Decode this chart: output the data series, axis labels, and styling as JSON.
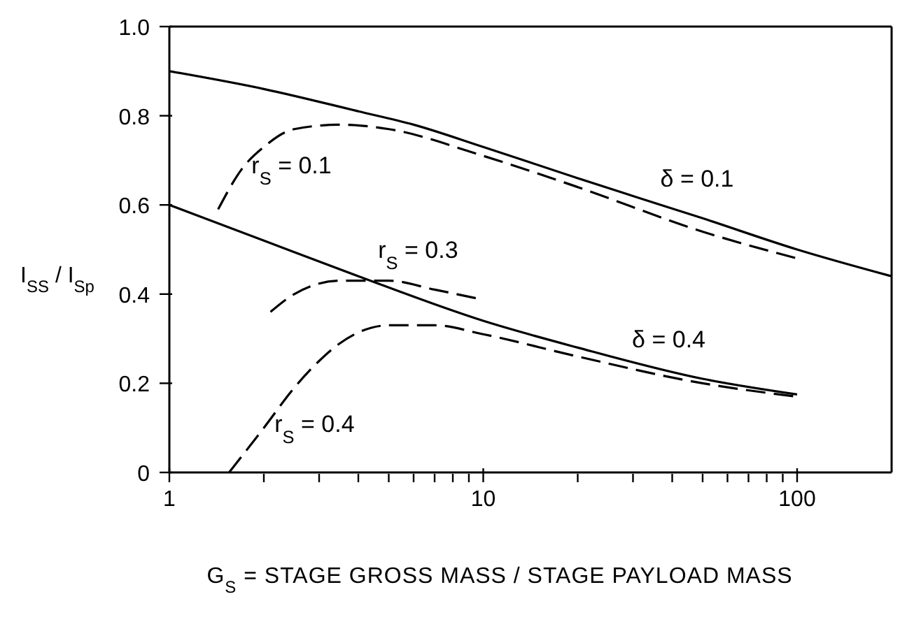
{
  "chart_data": {
    "type": "line",
    "xlabel": "G$_{S}$ = STAGE GROSS MASS / STAGE PAYLOAD MASS",
    "ylabel": "I$_{SS}$ / I$_{Sp}$",
    "log": "x",
    "grid": false,
    "legend": false,
    "marker": "none",
    "xlim": [
      1,
      200
    ],
    "xticks": [
      1,
      {
        "value": 2,
        "label": null
      },
      {
        "value": 3,
        "label": null
      },
      {
        "value": 4,
        "label": null
      },
      {
        "value": 5,
        "label": null
      },
      {
        "value": 6,
        "label": null
      },
      {
        "value": 7,
        "label": null
      },
      {
        "value": 8,
        "label": null
      },
      {
        "value": 9,
        "label": null
      },
      10,
      {
        "value": 20,
        "label": null
      },
      {
        "value": 30,
        "label": null
      },
      {
        "value": 40,
        "label": null
      },
      {
        "value": 50,
        "label": null
      },
      {
        "value": 60,
        "label": null
      },
      {
        "value": 70,
        "label": null
      },
      {
        "value": 80,
        "label": null
      },
      {
        "value": 90,
        "label": null
      },
      100
    ],
    "ylim": [
      0,
      1
    ],
    "yticks": [
      0,
      0.2,
      0.4,
      0.6,
      0.8,
      {
        "value": 1,
        "label": "1.0"
      }
    ],
    "series": [
      {
        "color": "#000000",
        "line_style": "solid",
        "x": [
          1,
          2,
          4,
          6,
          10,
          20,
          30,
          50,
          100,
          200
        ],
        "values": [
          0.9,
          0.86,
          0.81,
          0.78,
          0.73,
          0.66,
          0.62,
          0.57,
          0.5,
          0.44
        ]
      },
      {
        "color": "#000000",
        "line_style": "dashed",
        "x": [
          1.43,
          1.7,
          2,
          2.5,
          3.5,
          5,
          10,
          20,
          50,
          100
        ],
        "values": [
          0.59,
          0.68,
          0.73,
          0.77,
          0.78,
          0.77,
          0.71,
          0.64,
          0.54,
          0.48
        ]
      },
      {
        "color": "#000000",
        "line_style": "solid",
        "x": [
          1,
          2,
          4,
          10,
          20,
          50,
          100
        ],
        "values": [
          0.6,
          0.52,
          0.44,
          0.34,
          0.28,
          0.21,
          0.175
        ]
      },
      {
        "color": "#000000",
        "line_style": "dashed",
        "x": [
          2.1,
          2.5,
          3.5,
          5,
          7,
          9.6
        ],
        "values": [
          0.36,
          0.4,
          0.43,
          0.43,
          0.41,
          0.39
        ]
      },
      {
        "color": "#000000",
        "line_style": "dashed",
        "x": [
          1.55,
          2,
          2.5,
          3,
          3.5,
          5,
          7,
          10,
          20,
          50,
          100
        ],
        "values": [
          0,
          0.1,
          0.19,
          0.25,
          0.29,
          0.33,
          0.33,
          0.31,
          0.26,
          0.2,
          0.17
        ]
      }
    ],
    "annotations": [
      "r$_{S}$ = 0.1",
      "δ = 0.1",
      "r$_{S}$ = 0.3",
      "δ = 0.4",
      "r$_{S}$ = 0.4"
    ]
  }
}
